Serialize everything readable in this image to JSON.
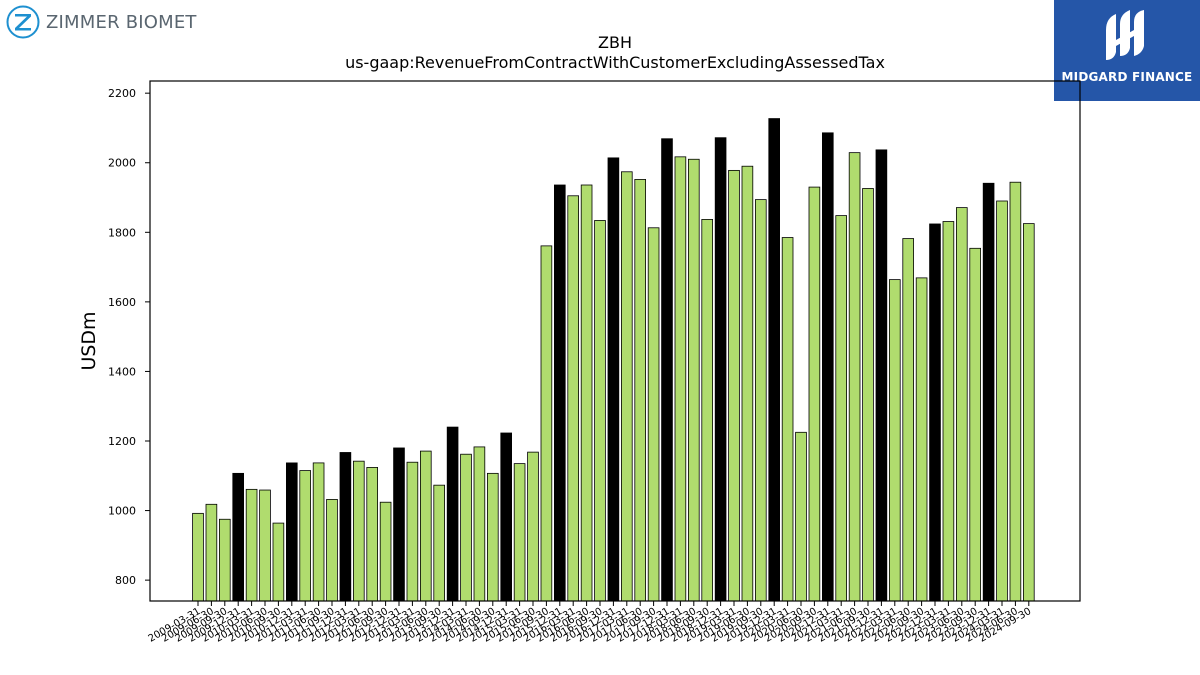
{
  "branding": {
    "company_logo_text": "ZIMMER BIOMET",
    "publisher_logo_text": "MIDGARD FINANCE",
    "publisher_color": "#2556a8"
  },
  "chart_data": {
    "type": "bar",
    "title": "ZBH",
    "subtitle": "us-gaap:RevenueFromContractWithCustomerExcludingAssessedTax",
    "xlabel": "",
    "ylabel": "USDm",
    "ylim": [
      740,
      2235
    ],
    "yticks": [
      800,
      1000,
      1200,
      1400,
      1600,
      1800,
      2000,
      2200
    ],
    "grid": false,
    "colors": {
      "quarter": "#b0dc6e",
      "annual": "#000000",
      "edge": "#000000"
    },
    "categories": [
      "2009-03-31",
      "2009-06-30",
      "2009-09-30",
      "2009-12-31",
      "2010-03-31",
      "2010-06-30",
      "2010-09-30",
      "2010-12-31",
      "2011-03-31",
      "2011-06-30",
      "2011-09-30",
      "2011-12-31",
      "2012-03-31",
      "2012-06-30",
      "2012-09-30",
      "2012-12-31",
      "2013-03-31",
      "2013-06-30",
      "2013-09-30",
      "2013-12-31",
      "2014-03-31",
      "2014-06-30",
      "2014-09-30",
      "2014-12-31",
      "2015-03-31",
      "2015-06-30",
      "2015-09-30",
      "2015-12-31",
      "2016-03-31",
      "2016-06-30",
      "2016-09-30",
      "2016-12-31",
      "2017-03-31",
      "2017-06-30",
      "2017-09-30",
      "2017-12-31",
      "2018-03-31",
      "2018-06-30",
      "2018-09-30",
      "2018-12-31",
      "2019-03-31",
      "2019-06-30",
      "2019-09-30",
      "2019-12-31",
      "2020-03-31",
      "2020-06-30",
      "2020-09-30",
      "2020-12-31",
      "2021-03-31",
      "2021-06-30",
      "2021-09-30",
      "2021-12-31",
      "2022-03-31",
      "2022-06-30",
      "2022-09-30",
      "2022-12-31",
      "2023-03-31",
      "2023-06-30",
      "2023-09-30",
      "2023-12-31",
      "2024-03-31",
      "2024-06-30",
      "2024-09-30"
    ],
    "values": [
      992,
      1018,
      975,
      1107,
      1061,
      1059,
      964,
      1137,
      1115,
      1137,
      1032,
      1167,
      1142,
      1124,
      1024,
      1180,
      1139,
      1171,
      1073,
      1240,
      1162,
      1183,
      1107,
      1223,
      1135,
      1168,
      1761,
      1936,
      1905,
      1936,
      1834,
      2014,
      1974,
      1952,
      1813,
      2069,
      2017,
      2010,
      1837,
      2072,
      1978,
      1990,
      1894,
      2127,
      1785,
      1225,
      1930,
      2086,
      1848,
      2029,
      1926,
      2037,
      1664,
      1782,
      1669,
      1824,
      1831,
      1871,
      1754,
      1941,
      1890,
      1944,
      1825
    ],
    "annual_flags": [
      0,
      0,
      0,
      1,
      0,
      0,
      0,
      1,
      0,
      0,
      0,
      1,
      0,
      0,
      0,
      1,
      0,
      0,
      0,
      1,
      0,
      0,
      0,
      1,
      0,
      0,
      0,
      1,
      0,
      0,
      0,
      1,
      0,
      0,
      0,
      1,
      0,
      0,
      0,
      1,
      0,
      0,
      0,
      1,
      0,
      0,
      0,
      1,
      0,
      0,
      0,
      1,
      0,
      0,
      0,
      1,
      0,
      0,
      0,
      1,
      0,
      0,
      0
    ]
  }
}
